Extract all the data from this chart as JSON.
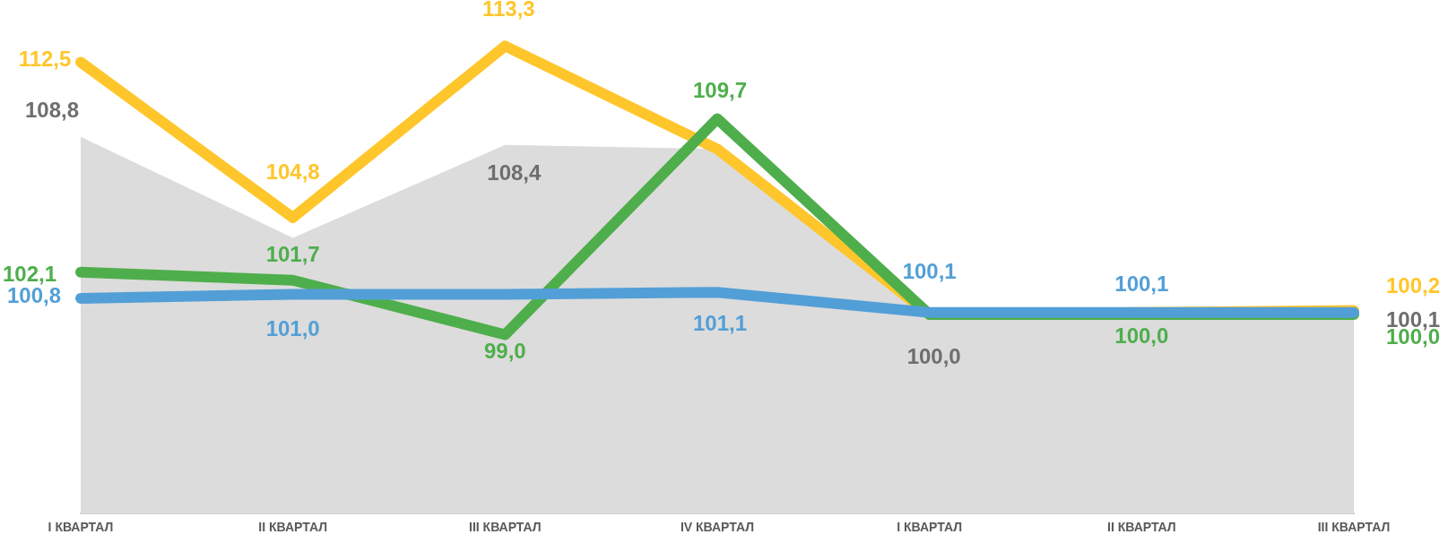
{
  "chart_data": {
    "type": "line",
    "categories": [
      "I КВАРТАЛ",
      "II КВАРТАЛ",
      "III КВАРТАЛ",
      "IV КВАРТАЛ",
      "I КВАРТАЛ",
      "II КВАРТАЛ",
      "III КВАРТАЛ"
    ],
    "tick_labels": "x",
    "grid": false,
    "legend": false,
    "marker": "none",
    "line_style": "solid",
    "series": [
      {
        "type": "area",
        "color": "#dcdcdc",
        "values": [
          108.8,
          103.8,
          108.4,
          108.2,
          100.0,
          100.0,
          100.1
        ],
        "value_labels": [
          "108,8",
          null,
          "108,4",
          null,
          "100,0",
          null,
          "100,1"
        ]
      },
      {
        "color": "#ffc62c",
        "values": [
          112.5,
          104.8,
          113.3,
          108.2,
          100.0,
          100.1,
          100.2
        ],
        "value_labels": [
          "112,5",
          "104,8",
          "113,3",
          null,
          null,
          null,
          "100,2"
        ]
      },
      {
        "color": "#4eae4b",
        "values": [
          102.1,
          101.7,
          99.0,
          109.7,
          100.0,
          100.0,
          100.0
        ],
        "value_labels": [
          "102,1",
          "101,7",
          "99,0",
          "109,7",
          null,
          "100,0",
          "100,0"
        ]
      },
      {
        "color": "#529fd7",
        "values": [
          100.8,
          101.0,
          101.0,
          101.1,
          100.1,
          100.1,
          100.1
        ],
        "value_labels": [
          "100,8",
          "101,0",
          null,
          "101,1",
          "100,1",
          "100,1",
          null
        ]
      }
    ]
  }
}
